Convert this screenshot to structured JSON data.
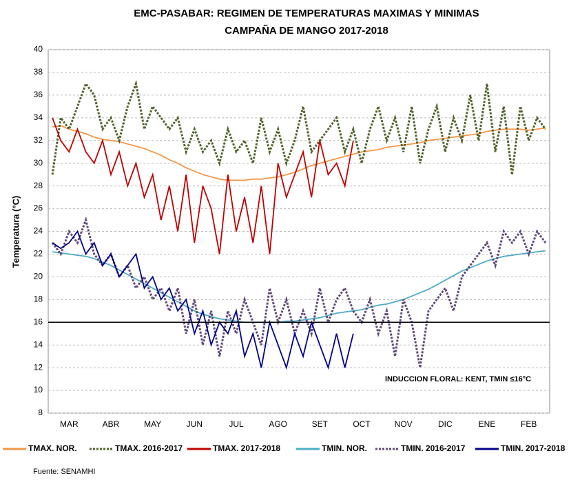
{
  "chart_data": {
    "type": "line",
    "title": "EMC-PASABAR: REGIMEN DE TEMPERATURAS MAXIMAS Y MINIMAS",
    "subtitle": "CAMPAÑA DE MANGO 2017-2018",
    "y_label": "Temperatura (°C)",
    "annotation": "INDUCCION FLORAL: KENT, TMIN ≤16°C",
    "source": "Fuente: SENAMHI",
    "threshold": 16,
    "ylim": [
      8,
      40
    ],
    "yticks": [
      8,
      10,
      12,
      14,
      16,
      18,
      20,
      22,
      24,
      26,
      28,
      30,
      32,
      34,
      36,
      38,
      40
    ],
    "grid": true,
    "categories": [
      null,
      null,
      "MAR",
      null,
      null,
      null,
      null,
      "ABR",
      null,
      null,
      null,
      null,
      "MAY",
      null,
      null,
      null,
      null,
      "JUN",
      null,
      null,
      null,
      null,
      "JUL",
      null,
      null,
      null,
      null,
      "AGO",
      null,
      null,
      null,
      null,
      "SET",
      null,
      null,
      null,
      null,
      "OCT",
      null,
      null,
      null,
      null,
      "NOV",
      null,
      null,
      null,
      null,
      "DIC",
      null,
      null,
      null,
      null,
      "ENE",
      null,
      null,
      null,
      null,
      "FEB",
      null,
      null
    ],
    "series": [
      {
        "name": "TMAX. NOR.",
        "color": "#f79646",
        "dash": "solid",
        "values": [
          33.2,
          33.3,
          33.0,
          32.8,
          32.6,
          32.3,
          32.1,
          32.0,
          31.9,
          31.7,
          31.5,
          31.3,
          31.0,
          30.7,
          30.3,
          30.0,
          29.6,
          29.3,
          29.0,
          28.8,
          28.6,
          28.5,
          28.5,
          28.5,
          28.6,
          28.6,
          28.7,
          28.8,
          29.0,
          29.2,
          29.5,
          29.8,
          30.0,
          30.2,
          30.4,
          30.6,
          30.8,
          31.0,
          31.1,
          31.2,
          31.4,
          31.5,
          31.6,
          31.7,
          31.8,
          32.0,
          32.1,
          32.2,
          32.3,
          32.4,
          32.5,
          32.6,
          32.8,
          32.9,
          33.0,
          33.0,
          33.0,
          32.9,
          33.0,
          33.1
        ]
      },
      {
        "name": "TMAX. 2016-2017",
        "color": "#4f6228",
        "dash": "dotted",
        "values": [
          29,
          34,
          33,
          35,
          37,
          36,
          33,
          34,
          32,
          35,
          37,
          33,
          35,
          34,
          33,
          34,
          31,
          33,
          31,
          32,
          30,
          33,
          31,
          32,
          30,
          34,
          31,
          33,
          30,
          32,
          35,
          31,
          32,
          33,
          34,
          31,
          33,
          30,
          33,
          35,
          32,
          34,
          31,
          35,
          30,
          33,
          35,
          31,
          34,
          32,
          36,
          32,
          37,
          31,
          35,
          29,
          35,
          32,
          34,
          33
        ]
      },
      {
        "name": "TMAX. 2017-2018",
        "color": "#c00000",
        "dash": "solid",
        "values": [
          34,
          32,
          31,
          33,
          31,
          30,
          32,
          29,
          31,
          28,
          30,
          27,
          29,
          25,
          28,
          24,
          29,
          23,
          28,
          26,
          22,
          29,
          24,
          27,
          23,
          28,
          22,
          30,
          27,
          29,
          31,
          27,
          32,
          29,
          30,
          28,
          32,
          null,
          null,
          null,
          null,
          null,
          null,
          null,
          null,
          null,
          null,
          null,
          null,
          null,
          null,
          null,
          null,
          null,
          null,
          null,
          null,
          null,
          null,
          null
        ]
      },
      {
        "name": "TMIN. NOR.",
        "color": "#4bacc6",
        "dash": "solid",
        "values": [
          22.2,
          22.1,
          22.0,
          21.9,
          21.8,
          21.6,
          21.3,
          21.0,
          20.6,
          20.2,
          19.8,
          19.4,
          19.0,
          18.6,
          18.2,
          17.8,
          17.4,
          17.0,
          16.7,
          16.5,
          16.3,
          16.2,
          16.1,
          16.0,
          16.0,
          16.0,
          16.0,
          16.0,
          16.1,
          16.1,
          16.2,
          16.3,
          16.4,
          16.6,
          16.8,
          16.9,
          17.0,
          17.1,
          17.3,
          17.5,
          17.6,
          17.8,
          18.0,
          18.3,
          18.6,
          18.9,
          19.3,
          19.7,
          20.1,
          20.5,
          20.8,
          21.1,
          21.4,
          21.6,
          21.8,
          21.9,
          22.0,
          22.1,
          22.2,
          22.3
        ]
      },
      {
        "name": "TMIN. 2016-2017",
        "color": "#5f497a",
        "dash": "dotted",
        "values": [
          23,
          22,
          24,
          23,
          25,
          22,
          21,
          22,
          20,
          21,
          19,
          20,
          18,
          19,
          17,
          19,
          15,
          18,
          14,
          17,
          13,
          17,
          15,
          18,
          16,
          14,
          19,
          16,
          18,
          15,
          17,
          15,
          19,
          16,
          18,
          19,
          17,
          16,
          18,
          15,
          17,
          13,
          18,
          16,
          12,
          17,
          18,
          19,
          17,
          20,
          21,
          22,
          23,
          21,
          24,
          23,
          24,
          22,
          24,
          23
        ]
      },
      {
        "name": "TMIN. 2017-2018",
        "color": "#00008b",
        "dash": "solid",
        "values": [
          23,
          22.5,
          23,
          24,
          22,
          23,
          21,
          22,
          20,
          21,
          22,
          19,
          20,
          18,
          19,
          17,
          18,
          15,
          17,
          14,
          16,
          15,
          17,
          13,
          15,
          12,
          16,
          14,
          12,
          15,
          13,
          16,
          14,
          12,
          15,
          12,
          15,
          null,
          null,
          null,
          null,
          null,
          null,
          null,
          null,
          null,
          null,
          null,
          null,
          null,
          null,
          null,
          null,
          null,
          null,
          null,
          null,
          null,
          null,
          null
        ]
      }
    ]
  }
}
